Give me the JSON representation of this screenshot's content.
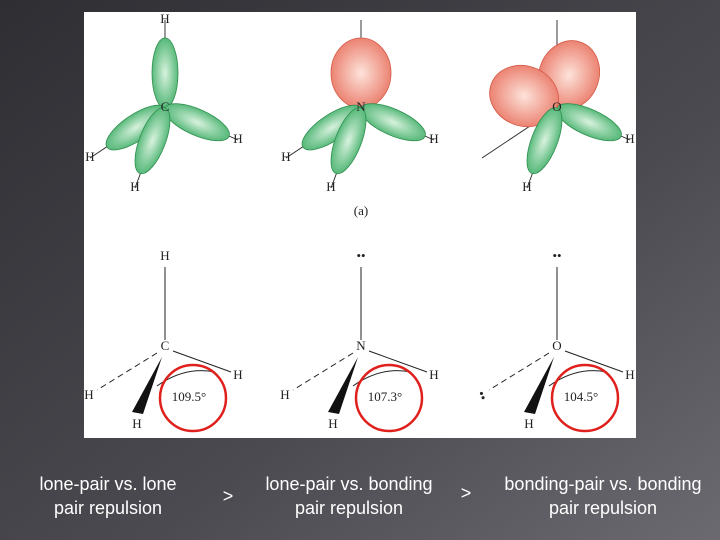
{
  "figure": {
    "top_label": "(a)",
    "molecules": [
      {
        "atom": "C",
        "orbital_labels": [
          "H",
          "H",
          "H",
          "H"
        ],
        "lewis_labels": [
          "H",
          "H",
          "H",
          "H"
        ],
        "angle": "109.5°"
      },
      {
        "atom": "N",
        "orbital_labels": [
          "H",
          "H",
          "H"
        ],
        "lewis_labels": [
          "••",
          "H",
          "H",
          "H"
        ],
        "angle": "107.3°"
      },
      {
        "atom": "O",
        "orbital_labels": [
          "H",
          "H"
        ],
        "lewis_labels": [
          "••",
          "H",
          "••",
          "H"
        ],
        "angle": "104.5°"
      }
    ]
  },
  "captions": [
    "lone-pair vs. lone pair repulsion",
    "lone-pair vs. bonding pair repulsion",
    "bonding-pair vs. bonding pair repulsion"
  ],
  "comparators": [
    ">",
    ">"
  ]
}
